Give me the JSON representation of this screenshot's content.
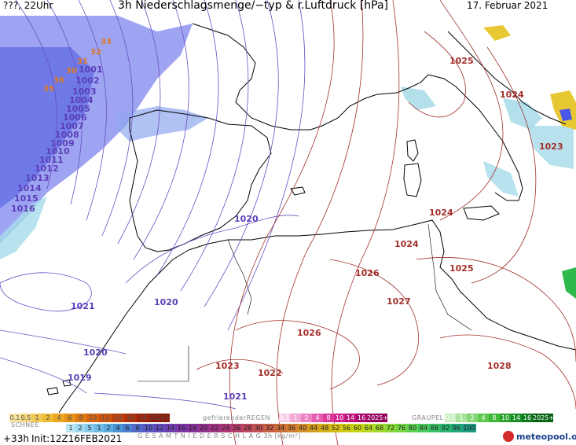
{
  "header": {
    "left": "???, 22Uhr",
    "title": "3h Niederschlagsmenge/−typ & r.Luftdruck [hPa]",
    "date": "17. Februar 2021"
  },
  "isobars": {
    "west": [
      "1001",
      "1002",
      "1003",
      "1004",
      "1005",
      "1006",
      "1007",
      "1008",
      "1009",
      "1010",
      "1011",
      "1012",
      "1013",
      "1014",
      "1015",
      "1016"
    ],
    "orange": [
      "33",
      "32",
      "31",
      "30",
      "35",
      "36"
    ],
    "purple_extra": [
      "1020",
      "1020",
      "1021",
      "1020",
      "1019",
      "1021"
    ],
    "red": [
      "1025",
      "1024",
      "1023",
      "1024",
      "1024",
      "1025",
      "1026",
      "1027",
      "1026",
      "1023",
      "1022",
      "1028"
    ]
  },
  "legend": {
    "schnee_label": "SCHNEE",
    "regen_label": "gefrierenderREGEN",
    "graupel_label": "GRAUPEL",
    "orange_scale": [
      "0.1",
      "0.5",
      "1",
      "2",
      "4",
      "6",
      "8",
      "10",
      "12",
      "14",
      "16",
      "18",
      "2025+"
    ],
    "pink_scale": [
      "0.1",
      "1",
      "2",
      "4",
      "8",
      "10",
      "14",
      "16",
      "2025+"
    ],
    "green_scale": [
      "0.1",
      "1",
      "2",
      "4",
      "8",
      "10",
      "14",
      "16",
      "2025+"
    ],
    "blue_scale": [
      "1",
      "2",
      "5",
      "1",
      "2",
      "4",
      "6",
      "8",
      "10",
      "12",
      "14",
      "16",
      "18",
      "20",
      "22",
      "24",
      "26",
      "28",
      "30",
      "32",
      "34",
      "36",
      "40",
      "44",
      "48",
      "52",
      "56",
      "60",
      "64",
      "68",
      "72",
      "76",
      "80",
      "84",
      "88",
      "92",
      "96",
      "100"
    ],
    "total_label": "G E S A M T N I E D E R S C H L A G   3h  [kg/m²]"
  },
  "footer": {
    "run": "+33h",
    "init": "Init:12Z16FEB2021",
    "brand": "meteopool.org"
  },
  "colors": {
    "snow": "#4a57e6",
    "rain_light": "#a6dbe8",
    "graupel": "#e8c832",
    "isobar_low": "#6a4fc2",
    "isobar_high": "#a3302c",
    "coast": "#000000"
  }
}
